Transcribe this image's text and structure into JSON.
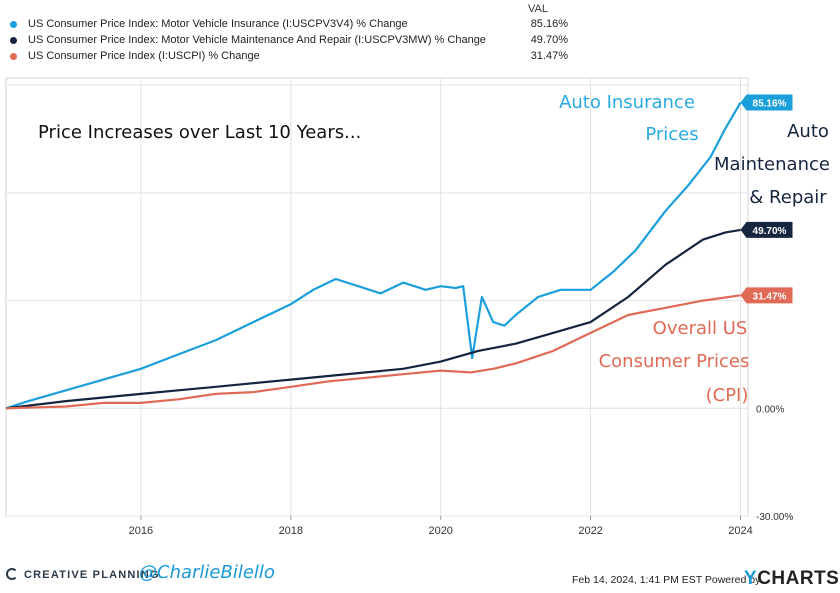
{
  "legend": {
    "value_header": "VAL",
    "items": [
      {
        "label": "US Consumer Price Index: Motor Vehicle Insurance (I:USCPV3V4) % Change",
        "value": "85.16%",
        "color": "#1a9fdb"
      },
      {
        "label": "US Consumer Price Index: Motor Vehicle Maintenance And Repair (I:USCPV3MW) % Change",
        "value": "49.70%",
        "color": "#16253f"
      },
      {
        "label": "US Consumer Price Index (I:USCPI) % Change",
        "value": "31.47%",
        "color": "#e06a55"
      }
    ]
  },
  "chart_data": {
    "type": "line",
    "title": "Price  Increases over Last 10 Years...",
    "xlabel": "",
    "ylabel": "",
    "x_ticks": [
      "2016",
      "2018",
      "2020",
      "2022",
      "2024"
    ],
    "y_ticks": [
      "0.00%",
      "-30.00%"
    ],
    "ylim": [
      -30,
      92
    ],
    "xlim": [
      2014.2,
      2024.1
    ],
    "grid": true,
    "series": [
      {
        "name": "US Consumer Price Index: Motor Vehicle Insurance (I:USCPV3V4) % Change",
        "end_label": "85.16%",
        "color": "#1a9fdb",
        "x": [
          2014.2,
          2014.5,
          2015.0,
          2015.5,
          2016.0,
          2016.5,
          2017.0,
          2017.5,
          2018.0,
          2018.3,
          2018.6,
          2018.9,
          2019.2,
          2019.5,
          2019.8,
          2020.0,
          2020.2,
          2020.3,
          2020.42,
          2020.55,
          2020.7,
          2020.85,
          2021.0,
          2021.3,
          2021.6,
          2022.0,
          2022.3,
          2022.6,
          2023.0,
          2023.3,
          2023.6,
          2023.8,
          2024.0
        ],
        "values": [
          0,
          2,
          5,
          8,
          11,
          15,
          19,
          24,
          29,
          33,
          36,
          34,
          32,
          35,
          33,
          34,
          33.5,
          34,
          14,
          31,
          24,
          23,
          26,
          31,
          33,
          33,
          38,
          44,
          55,
          62,
          70,
          78,
          85.16
        ]
      },
      {
        "name": "US Consumer Price Index: Motor Vehicle Maintenance And Repair (I:USCPV3MW) % Change",
        "end_label": "49.70%",
        "color": "#16253f",
        "x": [
          2014.2,
          2015.0,
          2015.5,
          2016.0,
          2016.5,
          2017.0,
          2017.5,
          2018.0,
          2018.5,
          2019.0,
          2019.5,
          2020.0,
          2020.5,
          2021.0,
          2021.5,
          2022.0,
          2022.5,
          2023.0,
          2023.5,
          2023.8,
          2024.0
        ],
        "values": [
          0,
          2,
          3,
          4,
          5,
          6,
          7,
          8,
          9,
          10,
          11,
          13,
          16,
          18,
          21,
          24,
          31,
          40,
          47,
          49,
          49.7
        ]
      },
      {
        "name": "US Consumer Price Index (I:USCPI) % Change",
        "end_label": "31.47%",
        "color": "#e06a55",
        "x": [
          2014.2,
          2015.0,
          2015.5,
          2016.0,
          2016.5,
          2017.0,
          2017.5,
          2018.0,
          2018.5,
          2019.0,
          2019.5,
          2020.0,
          2020.4,
          2020.7,
          2021.0,
          2021.5,
          2022.0,
          2022.5,
          2023.0,
          2023.5,
          2024.0
        ],
        "values": [
          0,
          0.5,
          1.5,
          1.5,
          2.5,
          4,
          4.5,
          6,
          7.5,
          8.5,
          9.5,
          10.5,
          10,
          11,
          12.5,
          16,
          21,
          26,
          28,
          30,
          31.47
        ]
      }
    ],
    "annotations": [
      {
        "text": "Auto Insurance",
        "color": "#2aaae2"
      },
      {
        "text": "Prices",
        "color": "#2aaae2"
      },
      {
        "text": "Auto",
        "color": "#16253f"
      },
      {
        "text": "Maintenance",
        "color": "#16253f"
      },
      {
        "text": "& Repair",
        "color": "#16253f"
      },
      {
        "text": "Overall US",
        "color": "#e06a55"
      },
      {
        "text": "Consumer Prices",
        "color": "#e06a55"
      },
      {
        "text": "(CPI)",
        "color": "#e06a55"
      }
    ]
  },
  "footer": {
    "brand": "CREATIVE PLANNING",
    "handle": "@CharlieBilello",
    "timestamp": "Feb 14, 2024, 1:41 PM EST Powered by",
    "ycharts_y": "Y",
    "ycharts_rest": "CHARTS"
  }
}
